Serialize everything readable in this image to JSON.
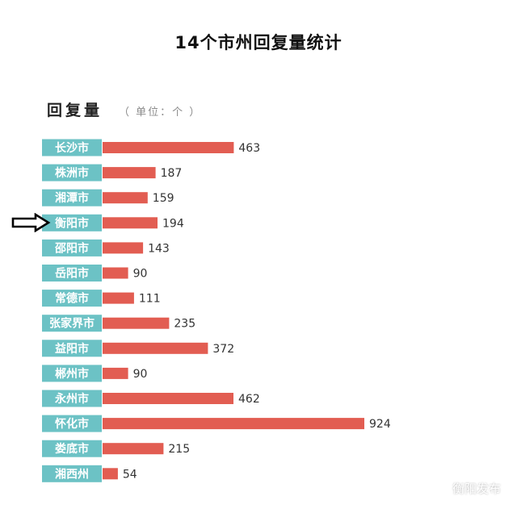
{
  "title": "14个市州回复量统计",
  "section": {
    "title": "回复量",
    "unit_note": "（ 单位：个 ）"
  },
  "watermark": {
    "text": "衡阳发布",
    "icon": "wechat-icon"
  },
  "marker": {
    "icon": "right-arrow-icon",
    "target": "衡阳市"
  },
  "colors": {
    "label_bg": "#6cc2c5",
    "bar": "#e25d52",
    "value_text": "#333333"
  },
  "chart_data": {
    "type": "bar",
    "orientation": "horizontal",
    "title": "14个市州回复量统计",
    "series_label": "回复量",
    "unit": "个",
    "categories": [
      "长沙市",
      "株洲市",
      "湘潭市",
      "衡阳市",
      "邵阳市",
      "岳阳市",
      "常德市",
      "张家界市",
      "益阳市",
      "郴州市",
      "永州市",
      "怀化市",
      "娄底市",
      "湘西州"
    ],
    "values": [
      463,
      187,
      159,
      194,
      143,
      90,
      111,
      235,
      372,
      90,
      462,
      924,
      215,
      54
    ],
    "xlim": [
      0,
      924
    ],
    "grid": false,
    "legend": "none"
  }
}
